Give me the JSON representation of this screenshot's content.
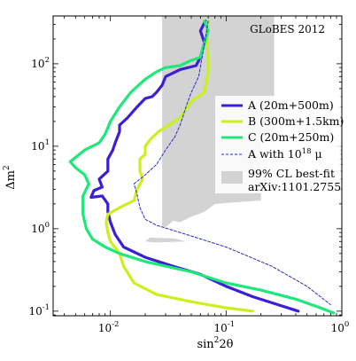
{
  "chart_data": {
    "type": "line",
    "title": "",
    "corner_label": "GLoBES 2012",
    "xlabel": "sin²2θ",
    "xlabel_base": "sin",
    "xlabel_sup": "2",
    "xlabel_rest": "2θ",
    "ylabel": "Δm²",
    "ylabel_base": "Δm",
    "ylabel_sup": "2",
    "xscale": "log",
    "yscale": "log",
    "xlim": [
      0.0032,
      1.0
    ],
    "ylim": [
      0.088,
      380
    ],
    "x_ticks": [
      {
        "value": 0.01,
        "base": "10",
        "exp": "-2"
      },
      {
        "value": 0.1,
        "base": "10",
        "exp": "-1"
      },
      {
        "value": 1,
        "base": "10",
        "exp": "0"
      }
    ],
    "y_ticks": [
      {
        "value": 0.1,
        "base": "10",
        "exp": "-1"
      },
      {
        "value": 1,
        "base": "10",
        "exp": "0"
      },
      {
        "value": 10,
        "base": "10",
        "exp": "1"
      },
      {
        "value": 100,
        "base": "10",
        "exp": "2"
      }
    ],
    "grid": false,
    "legend_position": "right",
    "series": [
      {
        "name": "A (20m+500m)",
        "color": "#3a1fd6",
        "style": "solid",
        "points": [
          [
            0.066,
            330
          ],
          [
            0.06,
            250
          ],
          [
            0.065,
            180
          ],
          [
            0.06,
            120
          ],
          [
            0.055,
            95
          ],
          [
            0.04,
            85
          ],
          [
            0.03,
            70
          ],
          [
            0.028,
            55
          ],
          [
            0.025,
            45
          ],
          [
            0.023,
            40
          ],
          [
            0.02,
            38
          ],
          [
            0.017,
            30
          ],
          [
            0.014,
            22
          ],
          [
            0.012,
            18
          ],
          [
            0.012,
            15
          ],
          [
            0.011,
            11
          ],
          [
            0.0105,
            9
          ],
          [
            0.0095,
            7
          ],
          [
            0.0095,
            6
          ],
          [
            0.0095,
            5
          ],
          [
            0.008,
            4
          ],
          [
            0.0085,
            3.2
          ],
          [
            0.0072,
            2.9
          ],
          [
            0.0068,
            2.4
          ],
          [
            0.0085,
            2.5
          ],
          [
            0.0095,
            2
          ],
          [
            0.0095,
            1.6
          ],
          [
            0.01,
            1.2
          ],
          [
            0.011,
            0.85
          ],
          [
            0.013,
            0.6
          ],
          [
            0.02,
            0.45
          ],
          [
            0.035,
            0.35
          ],
          [
            0.06,
            0.28
          ],
          [
            0.1,
            0.2
          ],
          [
            0.17,
            0.15
          ],
          [
            0.28,
            0.12
          ],
          [
            0.42,
            0.1
          ]
        ]
      },
      {
        "name": "B (300m+1.5km)",
        "color": "#cbf01e",
        "style": "solid",
        "points": [
          [
            0.07,
            330
          ],
          [
            0.068,
            200
          ],
          [
            0.07,
            120
          ],
          [
            0.07,
            80
          ],
          [
            0.065,
            45
          ],
          [
            0.05,
            35
          ],
          [
            0.045,
            28
          ],
          [
            0.04,
            22
          ],
          [
            0.032,
            18
          ],
          [
            0.026,
            15
          ],
          [
            0.022,
            12
          ],
          [
            0.02,
            10
          ],
          [
            0.02,
            8
          ],
          [
            0.018,
            7
          ],
          [
            0.018,
            5
          ],
          [
            0.019,
            4
          ],
          [
            0.017,
            3
          ],
          [
            0.016,
            2.2
          ],
          [
            0.012,
            1.8
          ],
          [
            0.0095,
            1.5
          ],
          [
            0.0092,
            1.2
          ],
          [
            0.0095,
            0.9
          ],
          [
            0.01,
            0.7
          ],
          [
            0.012,
            0.5
          ],
          [
            0.013,
            0.35
          ],
          [
            0.016,
            0.22
          ],
          [
            0.025,
            0.16
          ],
          [
            0.05,
            0.13
          ],
          [
            0.1,
            0.11
          ],
          [
            0.17,
            0.1
          ]
        ]
      },
      {
        "name": "C (20m+250m)",
        "color": "#1ee87a",
        "style": "solid",
        "points": [
          [
            0.065,
            330
          ],
          [
            0.07,
            250
          ],
          [
            0.065,
            180
          ],
          [
            0.06,
            120
          ],
          [
            0.05,
            110
          ],
          [
            0.04,
            95
          ],
          [
            0.03,
            90
          ],
          [
            0.025,
            80
          ],
          [
            0.02,
            65
          ],
          [
            0.015,
            45
          ],
          [
            0.012,
            30
          ],
          [
            0.01,
            20
          ],
          [
            0.009,
            14
          ],
          [
            0.008,
            11
          ],
          [
            0.006,
            9
          ],
          [
            0.0045,
            6.5
          ],
          [
            0.005,
            5.5
          ],
          [
            0.006,
            4.5
          ],
          [
            0.0065,
            3.5
          ],
          [
            0.0058,
            2.5
          ],
          [
            0.0058,
            1.5
          ],
          [
            0.0062,
            1.0
          ],
          [
            0.007,
            0.75
          ],
          [
            0.009,
            0.6
          ],
          [
            0.012,
            0.5
          ],
          [
            0.02,
            0.4
          ],
          [
            0.05,
            0.3
          ],
          [
            0.1,
            0.22
          ],
          [
            0.2,
            0.18
          ],
          [
            0.4,
            0.14
          ],
          [
            0.65,
            0.11
          ],
          [
            0.85,
            0.095
          ]
        ]
      },
      {
        "name": "A with 10¹⁸ μ",
        "legend_base": "A with 10",
        "legend_sup": "18",
        "legend_rest": " μ",
        "color": "#2a2ad0",
        "style": "dashed",
        "points": [
          [
            0.07,
            330
          ],
          [
            0.066,
            200
          ],
          [
            0.062,
            120
          ],
          [
            0.058,
            70
          ],
          [
            0.05,
            45
          ],
          [
            0.045,
            30
          ],
          [
            0.042,
            22
          ],
          [
            0.04,
            18
          ],
          [
            0.036,
            13
          ],
          [
            0.03,
            9
          ],
          [
            0.025,
            6
          ],
          [
            0.02,
            4.5
          ],
          [
            0.016,
            3.5
          ],
          [
            0.017,
            2.6
          ],
          [
            0.018,
            1.8
          ],
          [
            0.02,
            1.3
          ],
          [
            0.025,
            1.1
          ],
          [
            0.04,
            0.9
          ],
          [
            0.1,
            0.6
          ],
          [
            0.25,
            0.35
          ],
          [
            0.5,
            0.2
          ],
          [
            0.8,
            0.12
          ]
        ]
      }
    ],
    "shaded_region": {
      "name_line1": "99% CL best-fit",
      "name_line2": "arXiv:1101.2755",
      "color": "#d3d3d3",
      "polygons": [
        [
          [
            0.028,
            380
          ],
          [
            0.26,
            380
          ],
          [
            0.26,
            14
          ],
          [
            0.2,
            13
          ],
          [
            0.2,
            2.2
          ],
          [
            0.08,
            2.0
          ],
          [
            0.065,
            1.6
          ],
          [
            0.05,
            1.4
          ],
          [
            0.04,
            1.2
          ],
          [
            0.035,
            1.25
          ],
          [
            0.028,
            1.3
          ]
        ],
        [
          [
            0.028,
            1.3
          ],
          [
            0.035,
            1.25
          ],
          [
            0.03,
            1.05
          ],
          [
            0.028,
            1.05
          ]
        ],
        [
          [
            0.022,
            0.78
          ],
          [
            0.036,
            0.76
          ],
          [
            0.045,
            0.7
          ],
          [
            0.025,
            0.68
          ],
          [
            0.02,
            0.7
          ]
        ]
      ]
    }
  }
}
